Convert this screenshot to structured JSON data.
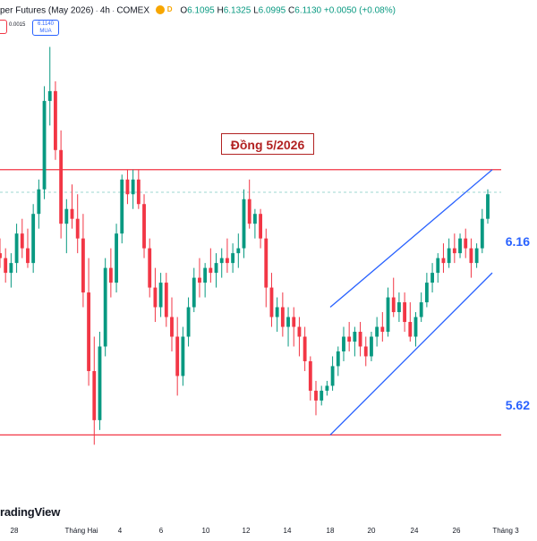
{
  "header": {
    "symbol": "per Futures (May 2026)",
    "interval": "4h",
    "exchange": "COMEX",
    "interval_badge": "D",
    "ohlc": {
      "open_label": "O",
      "open": "6.1095",
      "high_label": "H",
      "high": "6.1325",
      "low_label": "L",
      "low": "6.0995",
      "close_label": "C",
      "close": "6.1130",
      "change": "+0.0050 (+0.08%)"
    }
  },
  "trade": {
    "spread": "0.0015",
    "buy_price": "6.1140",
    "buy_label": "MUA"
  },
  "watermark": "radingView",
  "colors": {
    "up": "#089981",
    "down": "#f23645",
    "channel": "#2962ff",
    "level": "#f23645",
    "title_box": "#b22222"
  },
  "chart_data": {
    "type": "candlestick",
    "title": "Đồng 5/2026",
    "levels": [
      {
        "label": "6.16",
        "value": 6.16
      },
      {
        "label": "5.62",
        "value": 5.62
      }
    ],
    "x_tick_labels": [
      "28",
      "Tháng Hai",
      "4",
      "6",
      "10",
      "12",
      "14",
      "18",
      "20",
      "24",
      "26",
      "Tháng 3"
    ],
    "ylim": [
      5.495,
      6.46
    ],
    "last_price_line": 6.114,
    "channel": {
      "upper": [
        [
          -1,
          5.88
        ],
        [
          1,
          6.16
        ]
      ],
      "lower": [
        [
          -1,
          5.62
        ],
        [
          1,
          5.95
        ]
      ]
    },
    "candles": [
      [
        5.99,
        6.02,
        5.96,
        5.98
      ],
      [
        5.98,
        6.0,
        5.93,
        5.95
      ],
      [
        5.95,
        5.99,
        5.92,
        5.97
      ],
      [
        5.97,
        6.05,
        5.95,
        6.03
      ],
      [
        6.03,
        6.06,
        5.98,
        6.0
      ],
      [
        6.0,
        6.04,
        5.96,
        5.97
      ],
      [
        5.97,
        6.09,
        5.95,
        6.07
      ],
      [
        6.07,
        6.14,
        6.04,
        6.12
      ],
      [
        6.12,
        6.33,
        6.1,
        6.3
      ],
      [
        6.3,
        6.41,
        6.25,
        6.32
      ],
      [
        6.32,
        6.34,
        6.18,
        6.2
      ],
      [
        6.2,
        6.24,
        6.02,
        6.05
      ],
      [
        6.05,
        6.1,
        5.99,
        6.08
      ],
      [
        6.08,
        6.13,
        6.04,
        6.06
      ],
      [
        6.06,
        6.11,
        5.99,
        6.02
      ],
      [
        6.02,
        6.07,
        5.88,
        5.91
      ],
      [
        5.91,
        5.98,
        5.72,
        5.75
      ],
      [
        5.75,
        5.82,
        5.6,
        5.65
      ],
      [
        5.65,
        5.83,
        5.63,
        5.8
      ],
      [
        5.8,
        5.98,
        5.78,
        5.96
      ],
      [
        5.96,
        6.0,
        5.9,
        5.93
      ],
      [
        5.93,
        6.05,
        5.91,
        6.03
      ],
      [
        6.03,
        6.15,
        6.01,
        6.14
      ],
      [
        6.14,
        6.16,
        6.09,
        6.11
      ],
      [
        6.11,
        6.16,
        6.08,
        6.14
      ],
      [
        6.14,
        6.16,
        6.08,
        6.09
      ],
      [
        6.09,
        6.11,
        5.98,
        6.0
      ],
      [
        6.0,
        6.02,
        5.9,
        5.92
      ],
      [
        5.92,
        5.96,
        5.85,
        5.88
      ],
      [
        5.88,
        5.95,
        5.86,
        5.93
      ],
      [
        5.93,
        5.95,
        5.84,
        5.86
      ],
      [
        5.86,
        5.9,
        5.79,
        5.82
      ],
      [
        5.82,
        5.86,
        5.7,
        5.74
      ],
      [
        5.74,
        5.84,
        5.72,
        5.82
      ],
      [
        5.82,
        5.9,
        5.8,
        5.88
      ],
      [
        5.88,
        5.96,
        5.87,
        5.94
      ],
      [
        5.94,
        5.98,
        5.9,
        5.93
      ],
      [
        5.93,
        5.97,
        5.9,
        5.96
      ],
      [
        5.96,
        6.0,
        5.93,
        5.95
      ],
      [
        5.95,
        5.99,
        5.92,
        5.97
      ],
      [
        5.97,
        6.0,
        5.94,
        5.98
      ],
      [
        5.98,
        6.02,
        5.95,
        5.97
      ],
      [
        5.97,
        6.01,
        5.95,
        5.99
      ],
      [
        5.99,
        6.03,
        5.96,
        6.0
      ],
      [
        6.0,
        6.12,
        5.98,
        6.1
      ],
      [
        6.1,
        6.14,
        6.04,
        6.05
      ],
      [
        6.05,
        6.08,
        6.02,
        6.07
      ],
      [
        6.07,
        6.08,
        6.0,
        6.02
      ],
      [
        6.02,
        6.04,
        5.88,
        5.92
      ],
      [
        5.92,
        5.95,
        5.84,
        5.86
      ],
      [
        5.86,
        5.9,
        5.83,
        5.88
      ],
      [
        5.88,
        5.91,
        5.82,
        5.84
      ],
      [
        5.84,
        5.88,
        5.8,
        5.86
      ],
      [
        5.86,
        5.88,
        5.8,
        5.84
      ],
      [
        5.84,
        5.86,
        5.78,
        5.82
      ],
      [
        5.82,
        5.84,
        5.75,
        5.77
      ],
      [
        5.77,
        5.78,
        5.69,
        5.71
      ],
      [
        5.71,
        5.73,
        5.66,
        5.69
      ],
      [
        5.69,
        5.72,
        5.68,
        5.71
      ],
      [
        5.71,
        5.73,
        5.7,
        5.72
      ],
      [
        5.72,
        5.78,
        5.71,
        5.76
      ],
      [
        5.76,
        5.8,
        5.74,
        5.79
      ],
      [
        5.79,
        5.84,
        5.77,
        5.82
      ],
      [
        5.82,
        5.85,
        5.79,
        5.81
      ],
      [
        5.81,
        5.84,
        5.78,
        5.83
      ],
      [
        5.83,
        5.85,
        5.78,
        5.8
      ],
      [
        5.8,
        5.82,
        5.76,
        5.78
      ],
      [
        5.78,
        5.83,
        5.77,
        5.82
      ],
      [
        5.82,
        5.86,
        5.8,
        5.84
      ],
      [
        5.84,
        5.87,
        5.81,
        5.83
      ],
      [
        5.83,
        5.92,
        5.82,
        5.9
      ],
      [
        5.9,
        5.94,
        5.86,
        5.87
      ],
      [
        5.87,
        5.91,
        5.85,
        5.89
      ],
      [
        5.89,
        5.91,
        5.83,
        5.85
      ],
      [
        5.85,
        5.89,
        5.81,
        5.82
      ],
      [
        5.82,
        5.87,
        5.8,
        5.86
      ],
      [
        5.86,
        5.91,
        5.85,
        5.89
      ],
      [
        5.89,
        5.95,
        5.88,
        5.93
      ],
      [
        5.93,
        5.97,
        5.91,
        5.95
      ],
      [
        5.95,
        5.99,
        5.93,
        5.98
      ],
      [
        5.98,
        6.01,
        5.95,
        5.97
      ],
      [
        5.97,
        6.02,
        5.96,
        6.0
      ],
      [
        6.0,
        6.03,
        5.97,
        5.99
      ],
      [
        5.99,
        6.03,
        5.98,
        6.02
      ],
      [
        6.02,
        6.04,
        5.98,
        6.0
      ],
      [
        6.0,
        6.02,
        5.94,
        5.97
      ],
      [
        5.97,
        6.01,
        5.96,
        6.0
      ],
      [
        6.0,
        6.08,
        5.99,
        6.06
      ],
      [
        6.06,
        6.12,
        6.05,
        6.11
      ]
    ]
  }
}
